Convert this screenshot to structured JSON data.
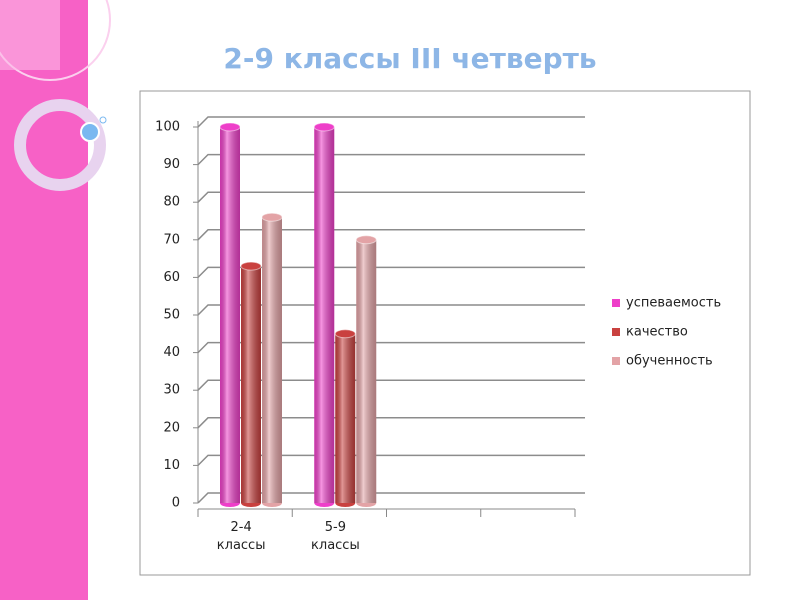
{
  "chart_data": {
    "type": "bar",
    "title": "2-9 классы III четверть",
    "categories": [
      "2-4 классы",
      "5-9 классы",
      null,
      null
    ],
    "series": [
      {
        "name": "успеваемость",
        "color": "#ee3fc9",
        "values": [
          100,
          100,
          null,
          null
        ]
      },
      {
        "name": "качество",
        "color": "#c9413f",
        "values": [
          63,
          45,
          null,
          null
        ]
      },
      {
        "name": "обученность",
        "color": "#e3a3a6",
        "values": [
          76,
          70,
          null,
          null
        ]
      }
    ],
    "ylim": [
      0,
      100
    ],
    "yticks": [
      0,
      10,
      20,
      30,
      40,
      50,
      60,
      70,
      80,
      90,
      100
    ],
    "grid": true,
    "legend": "right"
  }
}
